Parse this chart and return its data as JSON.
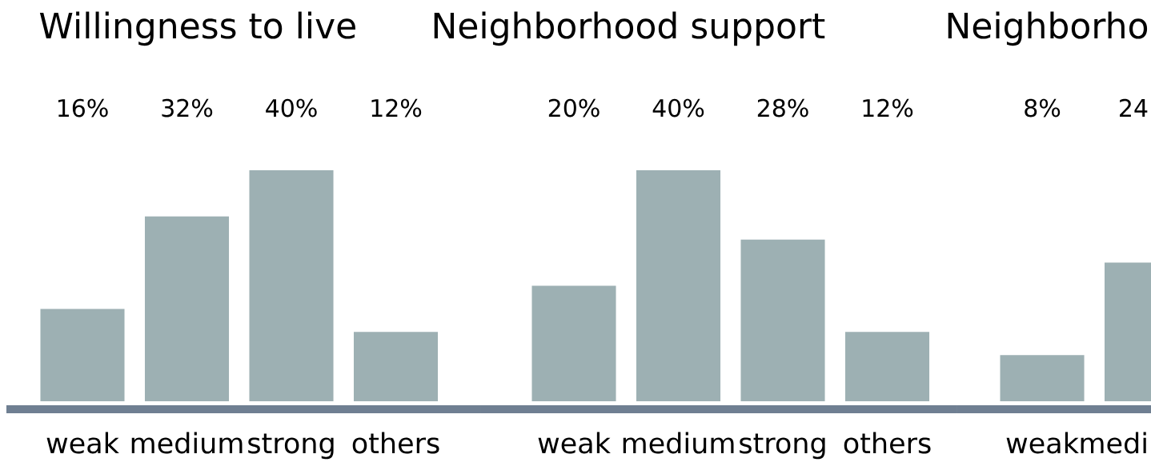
{
  "chart_data": [
    {
      "type": "bar",
      "title": "Willingness to live",
      "categories": [
        "weak",
        "medium",
        "strong",
        "others"
      ],
      "values": [
        16,
        32,
        40,
        12
      ],
      "value_labels": [
        "16%",
        "32%",
        "40%",
        "12%"
      ],
      "color": "#9db0b3"
    },
    {
      "type": "bar",
      "title": "Neighborhood support",
      "categories": [
        "weak",
        "medium",
        "strong",
        "others"
      ],
      "values": [
        20,
        40,
        28,
        12
      ],
      "value_labels": [
        "20%",
        "40%",
        "28%",
        "12%"
      ],
      "color": "#9db0b3"
    },
    {
      "type": "bar",
      "title": "Neighborho",
      "categories": [
        "weak",
        "medi"
      ],
      "values": [
        8,
        24
      ],
      "value_labels": [
        "8%",
        "24"
      ],
      "color": "#9db0b3"
    }
  ]
}
